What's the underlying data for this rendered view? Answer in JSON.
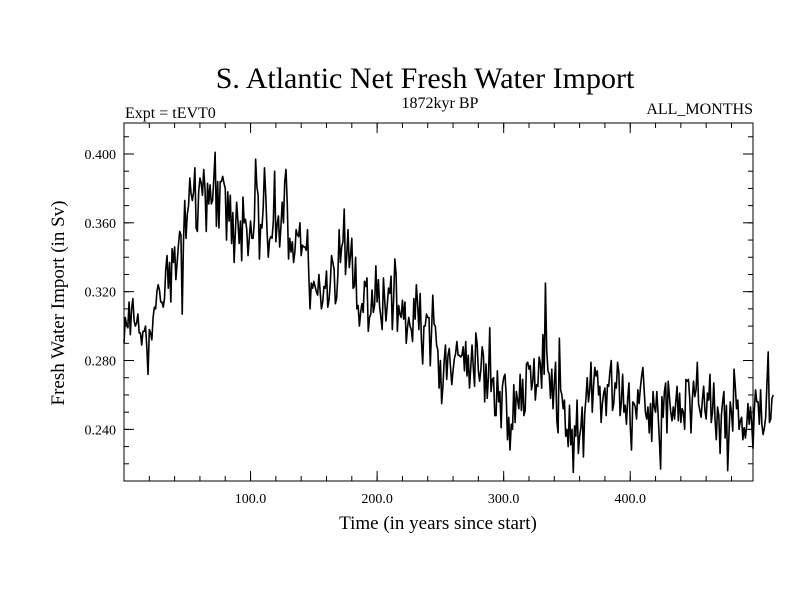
{
  "chart_data": {
    "type": "line",
    "title": "S. Atlantic Net Fresh Water Import",
    "subtitle_left": "Expt = tEVT0",
    "subtitle_center": "1872kyr BP",
    "subtitle_right": "ALL_MONTHS",
    "xlabel": "Time (in years since start)",
    "ylabel": "Fresh Water Import (in Sv)",
    "xlim": [
      0,
      497
    ],
    "ylim": [
      0.21,
      0.418
    ],
    "x_ticks": [
      {
        "value": 100,
        "label": "100.0"
      },
      {
        "value": 200,
        "label": "200.0"
      },
      {
        "value": 300,
        "label": "300.0"
      },
      {
        "value": 400,
        "label": "400.0"
      }
    ],
    "y_ticks": [
      {
        "value": 0.24,
        "label": "0.240"
      },
      {
        "value": 0.28,
        "label": "0.280"
      },
      {
        "value": 0.32,
        "label": "0.320"
      },
      {
        "value": 0.36,
        "label": "0.360"
      },
      {
        "value": 0.4,
        "label": "0.400"
      }
    ],
    "x_minor_step": 20,
    "y_minor_step": 0.01,
    "series": [
      {
        "name": "Fresh Water Import",
        "color": "#000000",
        "x_start": 0,
        "x_step": 1,
        "values": [
          0.29,
          0.305,
          0.301,
          0.299,
          0.314,
          0.295,
          0.31,
          0.316,
          0.303,
          0.3,
          0.302,
          0.307,
          0.296,
          0.296,
          0.289,
          0.297,
          0.297,
          0.3,
          0.288,
          0.272,
          0.298,
          0.296,
          0.292,
          0.305,
          0.311,
          0.31,
          0.32,
          0.324,
          0.321,
          0.314,
          0.314,
          0.311,
          0.316,
          0.333,
          0.341,
          0.322,
          0.337,
          0.314,
          0.345,
          0.337,
          0.346,
          0.327,
          0.337,
          0.347,
          0.355,
          0.353,
          0.307,
          0.349,
          0.373,
          0.351,
          0.365,
          0.37,
          0.386,
          0.377,
          0.373,
          0.378,
          0.392,
          0.357,
          0.355,
          0.378,
          0.386,
          0.383,
          0.376,
          0.391,
          0.38,
          0.355,
          0.383,
          0.371,
          0.382,
          0.371,
          0.373,
          0.386,
          0.401,
          0.358,
          0.384,
          0.357,
          0.384,
          0.384,
          0.387,
          0.383,
          0.38,
          0.35,
          0.378,
          0.361,
          0.376,
          0.348,
          0.366,
          0.337,
          0.355,
          0.372,
          0.361,
          0.348,
          0.361,
          0.338,
          0.375,
          0.36,
          0.362,
          0.356,
          0.341,
          0.351,
          0.361,
          0.351,
          0.351,
          0.361,
          0.397,
          0.381,
          0.376,
          0.339,
          0.359,
          0.357,
          0.369,
          0.392,
          0.376,
          0.356,
          0.34,
          0.35,
          0.352,
          0.351,
          0.361,
          0.39,
          0.349,
          0.359,
          0.364,
          0.346,
          0.358,
          0.372,
          0.36,
          0.384,
          0.391,
          0.371,
          0.339,
          0.351,
          0.343,
          0.349,
          0.337,
          0.343,
          0.356,
          0.353,
          0.352,
          0.36,
          0.341,
          0.347,
          0.346,
          0.346,
          0.344,
          0.356,
          0.33,
          0.31,
          0.325,
          0.322,
          0.326,
          0.323,
          0.32,
          0.318,
          0.33,
          0.32,
          0.31,
          0.314,
          0.323,
          0.322,
          0.332,
          0.311,
          0.315,
          0.325,
          0.341,
          0.337,
          0.333,
          0.313,
          0.316,
          0.33,
          0.356,
          0.337,
          0.346,
          0.349,
          0.368,
          0.33,
          0.341,
          0.356,
          0.334,
          0.341,
          0.351,
          0.322,
          0.323,
          0.34,
          0.31,
          0.312,
          0.3,
          0.308,
          0.313,
          0.308,
          0.326,
          0.323,
          0.328,
          0.297,
          0.305,
          0.307,
          0.321,
          0.308,
          0.312,
          0.335,
          0.314,
          0.327,
          0.311,
          0.305,
          0.298,
          0.328,
          0.315,
          0.303,
          0.312,
          0.322,
          0.319,
          0.329,
          0.298,
          0.315,
          0.339,
          0.33,
          0.297,
          0.312,
          0.307,
          0.305,
          0.315,
          0.304,
          0.314,
          0.29,
          0.299,
          0.305,
          0.3,
          0.298,
          0.291,
          0.316,
          0.304,
          0.324,
          0.313,
          0.298,
          0.319,
          0.292,
          0.278,
          0.3,
          0.3,
          0.307,
          0.305,
          0.305,
          0.277,
          0.297,
          0.318,
          0.301,
          0.3,
          0.289,
          0.286,
          0.264,
          0.28,
          0.255,
          0.265,
          0.28,
          0.289,
          0.269,
          0.283,
          0.287,
          0.276,
          0.266,
          0.274,
          0.281,
          0.284,
          0.291,
          0.283,
          0.283,
          0.282,
          0.283,
          0.288,
          0.274,
          0.291,
          0.271,
          0.283,
          0.264,
          0.276,
          0.289,
          0.276,
          0.265,
          0.296,
          0.29,
          0.274,
          0.268,
          0.275,
          0.288,
          0.283,
          0.256,
          0.278,
          0.258,
          0.271,
          0.299,
          0.262,
          0.269,
          0.27,
          0.248,
          0.248,
          0.274,
          0.256,
          0.262,
          0.241,
          0.265,
          0.27,
          0.272,
          0.26,
          0.234,
          0.247,
          0.228,
          0.243,
          0.24,
          0.266,
          0.244,
          0.262,
          0.257,
          0.252,
          0.272,
          0.251,
          0.269,
          0.248,
          0.251,
          0.278,
          0.279,
          0.275,
          0.277,
          0.263,
          0.268,
          0.281,
          0.257,
          0.266,
          0.265,
          0.282,
          0.278,
          0.264,
          0.295,
          0.272,
          0.325,
          0.286,
          0.274,
          0.272,
          0.258,
          0.275,
          0.252,
          0.267,
          0.279,
          0.245,
          0.238,
          0.293,
          0.263,
          0.26,
          0.252,
          0.257,
          0.236,
          0.24,
          0.23,
          0.254,
          0.231,
          0.24,
          0.215,
          0.242,
          0.236,
          0.257,
          0.226,
          0.236,
          0.241,
          0.253,
          0.224,
          0.249,
          0.258,
          0.27,
          0.256,
          0.263,
          0.279,
          0.25,
          0.265,
          0.276,
          0.271,
          0.274,
          0.26,
          0.265,
          0.244,
          0.255,
          0.261,
          0.264,
          0.248,
          0.266,
          0.265,
          0.274,
          0.28,
          0.251,
          0.255,
          0.267,
          0.264,
          0.279,
          0.273,
          0.248,
          0.256,
          0.272,
          0.25,
          0.254,
          0.243,
          0.258,
          0.267,
          0.242,
          0.228,
          0.256,
          0.255,
          0.253,
          0.246,
          0.263,
          0.255,
          0.264,
          0.271,
          0.276,
          0.263,
          0.25,
          0.246,
          0.253,
          0.238,
          0.255,
          0.233,
          0.262,
          0.253,
          0.25,
          0.262,
          0.249,
          0.234,
          0.217,
          0.259,
          0.247,
          0.262,
          0.267,
          0.238,
          0.268,
          0.259,
          0.25,
          0.245,
          0.253,
          0.246,
          0.256,
          0.265,
          0.245,
          0.261,
          0.244,
          0.252,
          0.25,
          0.24,
          0.269,
          0.268,
          0.269,
          0.258,
          0.238,
          0.257,
          0.268,
          0.259,
          0.263,
          0.279,
          0.255,
          0.251,
          0.247,
          0.257,
          0.265,
          0.251,
          0.246,
          0.261,
          0.257,
          0.272,
          0.244,
          0.25,
          0.267,
          0.246,
          0.234,
          0.253,
          0.248,
          0.226,
          0.248,
          0.256,
          0.262,
          0.235,
          0.254,
          0.216,
          0.237,
          0.256,
          0.25,
          0.239,
          0.275,
          0.265,
          0.252,
          0.257,
          0.24,
          0.245,
          0.247,
          0.234,
          0.241,
          0.235,
          0.242,
          0.255,
          0.243,
          0.253,
          0.243,
          0.229,
          0.251,
          0.263,
          0.256,
          0.256,
          0.243,
          0.263,
          0.243,
          0.237,
          0.241,
          0.247,
          0.266,
          0.285,
          0.244,
          0.246,
          0.258,
          0.26
        ]
      }
    ]
  }
}
